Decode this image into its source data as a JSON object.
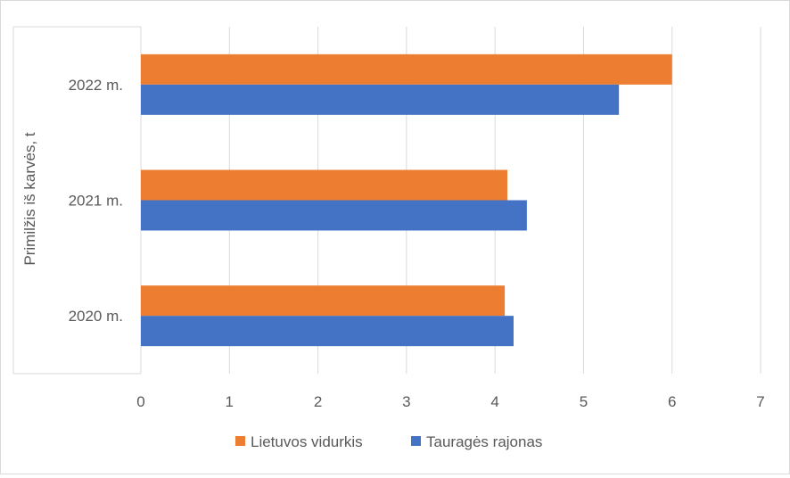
{
  "chart_data": {
    "type": "bar",
    "orientation": "horizontal",
    "categories": [
      "2020 m.",
      "2021 m.",
      "2022 m."
    ],
    "series": [
      {
        "name": "Lietuvos vidurkis",
        "color": "#ed7d31",
        "values": [
          4.11,
          4.14,
          6.0
        ]
      },
      {
        "name": "Tauragės rajonas",
        "color": "#4472c4",
        "values": [
          4.21,
          4.36,
          5.4
        ]
      }
    ],
    "ylabel": "Primilžis iš karvės, t",
    "xlabel": "",
    "xlim": [
      0,
      7
    ],
    "xticks": [
      "0",
      "1",
      "2",
      "3",
      "4",
      "5",
      "6",
      "7"
    ],
    "grid": true,
    "legend_position": "bottom"
  }
}
